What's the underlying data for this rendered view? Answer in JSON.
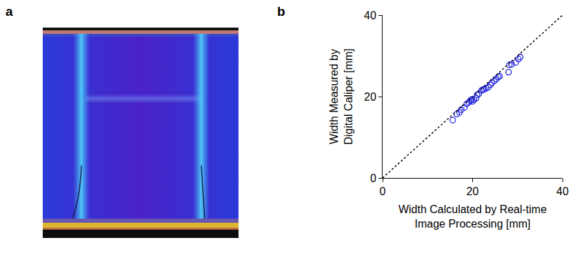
{
  "panel_labels": [
    "a",
    "b"
  ],
  "chart_data": {
    "type": "scatter",
    "x_label": "Width Calculated by Real-time Image Processing [mm]",
    "y_label": "Width Measured by Digital Caliper [mm]",
    "xlim": [
      0,
      40
    ],
    "xticks": [
      0,
      20,
      40
    ],
    "ylim": [
      0,
      40
    ],
    "yticks": [
      0,
      20,
      40
    ],
    "grid": false,
    "series": [
      {
        "type": "scatter",
        "marker": "circle-open",
        "color": "#1f1fe0",
        "x": [
          15.6,
          16.5,
          17.1,
          17.5,
          18.2,
          18.7,
          19.2,
          19.5,
          19.8,
          20.0,
          20.3,
          20.8,
          21.0,
          21.4,
          22.0,
          22.3,
          22.6,
          23.0,
          23.5,
          24.0,
          24.3,
          24.8,
          25.3,
          25.7,
          26.0,
          28.0,
          28.2,
          28.7,
          29.6,
          30.2,
          30.6
        ],
        "values": [
          14.2,
          15.7,
          16.1,
          16.8,
          17.3,
          18.2,
          18.6,
          19.0,
          19.3,
          18.8,
          19.2,
          19.6,
          20.4,
          20.7,
          21.5,
          21.7,
          21.8,
          22.0,
          22.3,
          22.9,
          23.4,
          23.8,
          24.3,
          24.8,
          25.0,
          26.0,
          27.8,
          27.9,
          28.4,
          29.2,
          29.7
        ]
      },
      {
        "type": "line",
        "line_style": "dot",
        "color": "#000000",
        "x": [
          0,
          40
        ],
        "values": [
          0,
          40
        ]
      }
    ]
  }
}
